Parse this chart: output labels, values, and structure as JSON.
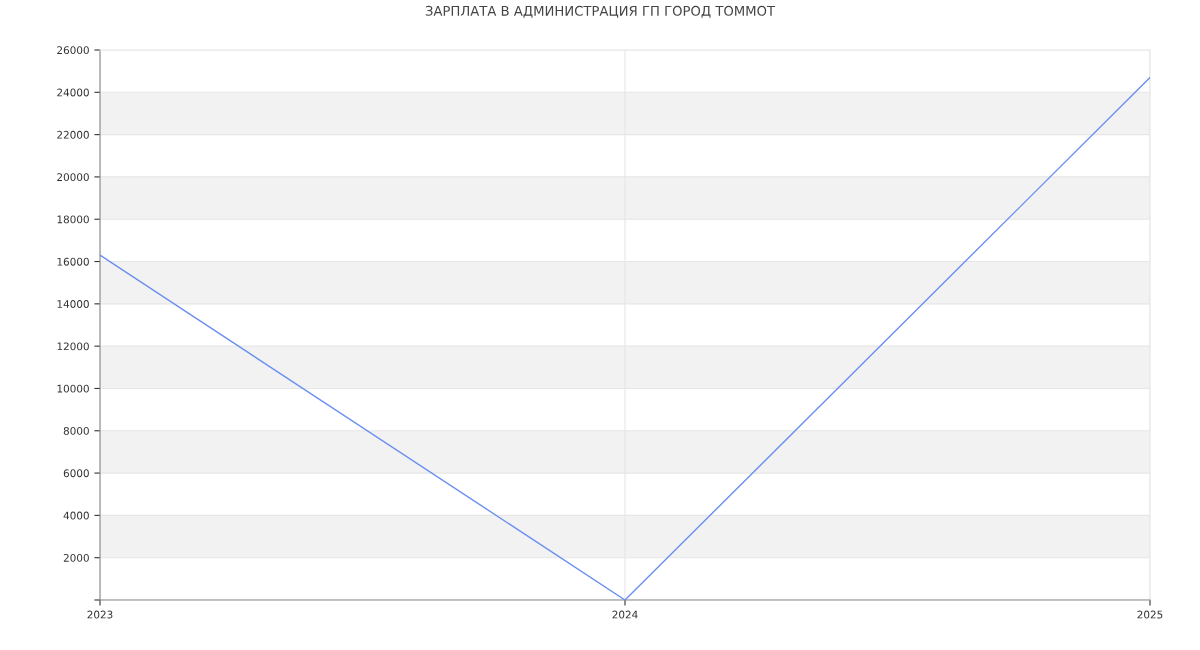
{
  "chart_data": {
    "type": "line",
    "title": "ЗАРПЛАТА В АДМИНИСТРАЦИЯ ГП ГОРОД ТОММОТ",
    "x": [
      2023,
      2024,
      2025
    ],
    "series": [
      {
        "color": "#6a8ff0",
        "values": [
          16300,
          0,
          24700
        ]
      }
    ],
    "xlim": [
      2023,
      2025
    ],
    "xticks": [
      2023,
      2024,
      2025
    ],
    "ylim": [
      0,
      26000
    ],
    "yticks": [
      {
        "value": 0,
        "label": null
      },
      2000,
      4000,
      6000,
      8000,
      10000,
      12000,
      14000,
      16000,
      18000,
      20000,
      22000,
      24000,
      26000
    ],
    "bands": [
      {
        "axis": "y",
        "from": 2000,
        "to": 4000,
        "color": "#f2f2f2"
      },
      {
        "axis": "y",
        "from": 6000,
        "to": 8000,
        "color": "#f2f2f2"
      },
      {
        "axis": "y",
        "from": 10000,
        "to": 12000,
        "color": "#f2f2f2"
      },
      {
        "axis": "y",
        "from": 14000,
        "to": 16000,
        "color": "#f2f2f2"
      },
      {
        "axis": "y",
        "from": 18000,
        "to": 20000,
        "color": "#f2f2f2"
      },
      {
        "axis": "y",
        "from": 22000,
        "to": 24000,
        "color": "#f2f2f2"
      }
    ],
    "grid": true,
    "marker": "none",
    "line_style": "solid",
    "legend": false
  }
}
